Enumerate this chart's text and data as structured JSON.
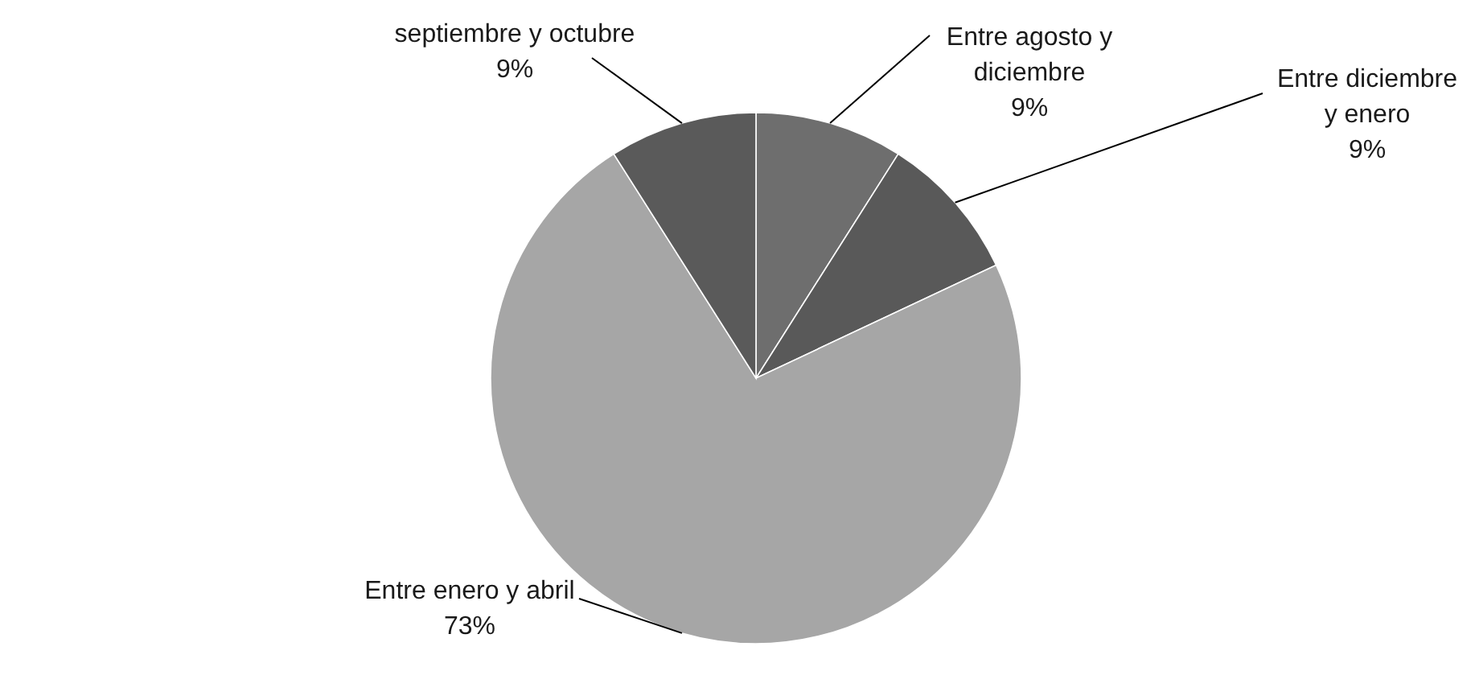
{
  "chart_data": {
    "type": "pie",
    "categories": [
      "Entre agosto y diciembre",
      "Entre diciembre y enero",
      "Entre enero y abril",
      "septiembre y octubre"
    ],
    "values": [
      9,
      9,
      73,
      9
    ],
    "colors": [
      "#6e6e6e",
      "#595959",
      "#a6a6a6",
      "#5a5a5a"
    ],
    "value_labels": [
      "9%",
      "9%",
      "73%",
      "9%"
    ]
  }
}
